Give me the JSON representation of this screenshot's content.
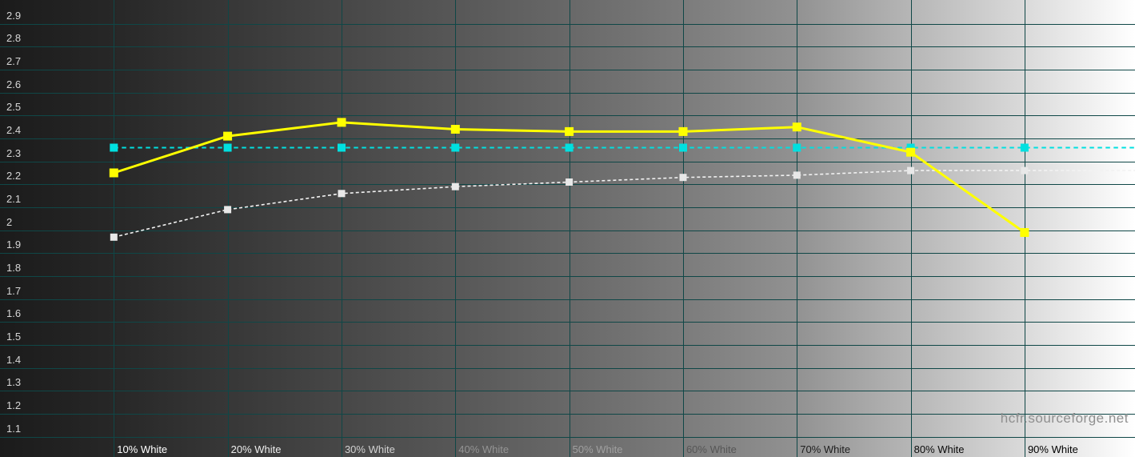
{
  "chart_data": {
    "type": "line",
    "title": "",
    "x_categories": [
      "10% White",
      "20% White",
      "30% White",
      "40% White",
      "50% White",
      "60% White",
      "70% White",
      "80% White",
      "90% White"
    ],
    "x_tick_colors": [
      "#ffffff",
      "#ececec",
      "#d2d2d2",
      "#949494",
      "#a0a0a0",
      "#565656",
      "#1e1e1e",
      "#0a0a0a",
      "#000000"
    ],
    "y_ticks": [
      "2.9",
      "2.8",
      "2.7",
      "2.6",
      "2.5",
      "2.4",
      "2.3",
      "2.2",
      "2.1",
      "2",
      "1.9",
      "1.8",
      "1.7",
      "1.6",
      "1.5",
      "1.4",
      "1.3",
      "1.2",
      "1.1"
    ],
    "ylim": [
      1.01,
      3.0
    ],
    "grid": true,
    "legend_position": "none",
    "series": [
      {
        "name": "reference gamma curve (white dashed)",
        "color": "#f2f2f2",
        "marker_color": "#e8e8e8",
        "line_style": "dashed",
        "extends_to_right_edge": true,
        "values": [
          1.97,
          2.09,
          2.16,
          2.19,
          2.21,
          2.23,
          2.24,
          2.26,
          2.26
        ]
      },
      {
        "name": "average gamma line (cyan dashed)",
        "color": "#00e0e0",
        "marker_color": "#00e0e0",
        "line_style": "dashed",
        "extends_to_right_edge": true,
        "values": [
          2.36,
          2.36,
          2.36,
          2.36,
          2.36,
          2.36,
          2.36,
          2.36,
          2.36
        ]
      },
      {
        "name": "measured gamma (yellow solid)",
        "color": "#ffff00",
        "marker_color": "#ffff00",
        "line_style": "solid",
        "extends_to_right_edge": false,
        "values": [
          2.25,
          2.41,
          2.47,
          2.44,
          2.43,
          2.43,
          2.45,
          2.34,
          1.99
        ]
      }
    ],
    "watermark": "hcfr.sourceforge.net"
  },
  "colors": {
    "grid_line": "#0f4747",
    "y_tick_text": "#d6d6d6",
    "watermark_text": "#8f8f8f",
    "background_left": "#1b1b1b",
    "background_right": "#ffffff"
  }
}
